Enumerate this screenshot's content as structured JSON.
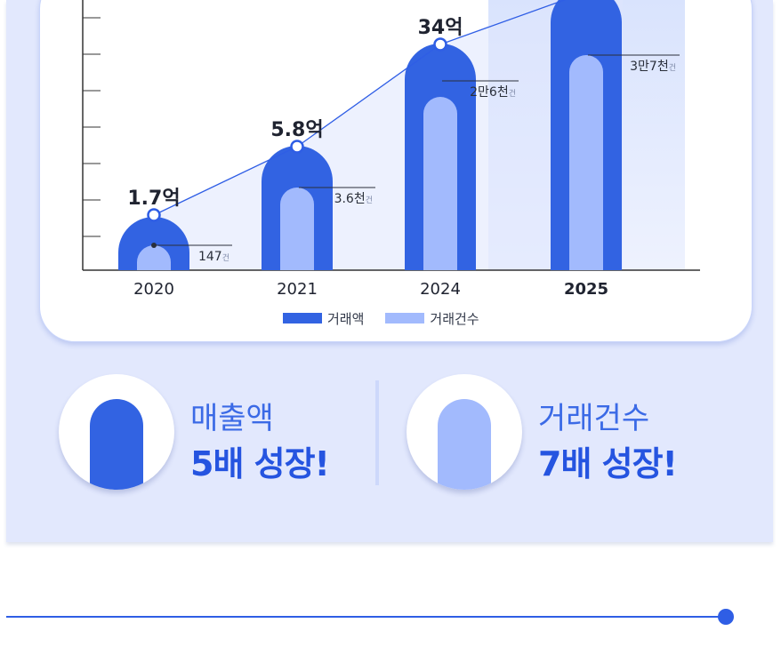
{
  "chart_data": {
    "type": "bar",
    "categories": [
      "2020",
      "2021",
      "2024",
      "2025"
    ],
    "highlight_category": "2025",
    "series": [
      {
        "name": "거래액",
        "values_label": [
          "1.7억",
          "5.8억",
          "34억",
          ""
        ],
        "color": "#3263e2"
      },
      {
        "name": "거래건수",
        "values_label": [
          "147건",
          "3.6천건",
          "2만6천건",
          "3만7천건"
        ],
        "color": "#a2bafd"
      }
    ],
    "amount_labels": [
      {
        "number": "1.7",
        "unit": "억"
      },
      {
        "number": "5.8",
        "unit": "억"
      },
      {
        "number": "34",
        "unit": "억"
      }
    ],
    "count_labels": [
      {
        "number": "147",
        "unit": "건"
      },
      {
        "number": "3.6천",
        "unit": "건"
      },
      {
        "number": "2만6천",
        "unit": "건"
      },
      {
        "number": "3만7천",
        "unit": "건"
      }
    ],
    "trend_line": true,
    "grid": false
  },
  "legend": {
    "amount": "거래액",
    "count": "거래건수"
  },
  "stats": [
    {
      "label": "매출액",
      "value": "5배 성장!"
    },
    {
      "label": "거래건수",
      "value": "7배 성장!"
    }
  ],
  "colors": {
    "primary": "#3263e2",
    "secondary": "#a2bafd",
    "panel_bg": "#e2e8fd"
  }
}
